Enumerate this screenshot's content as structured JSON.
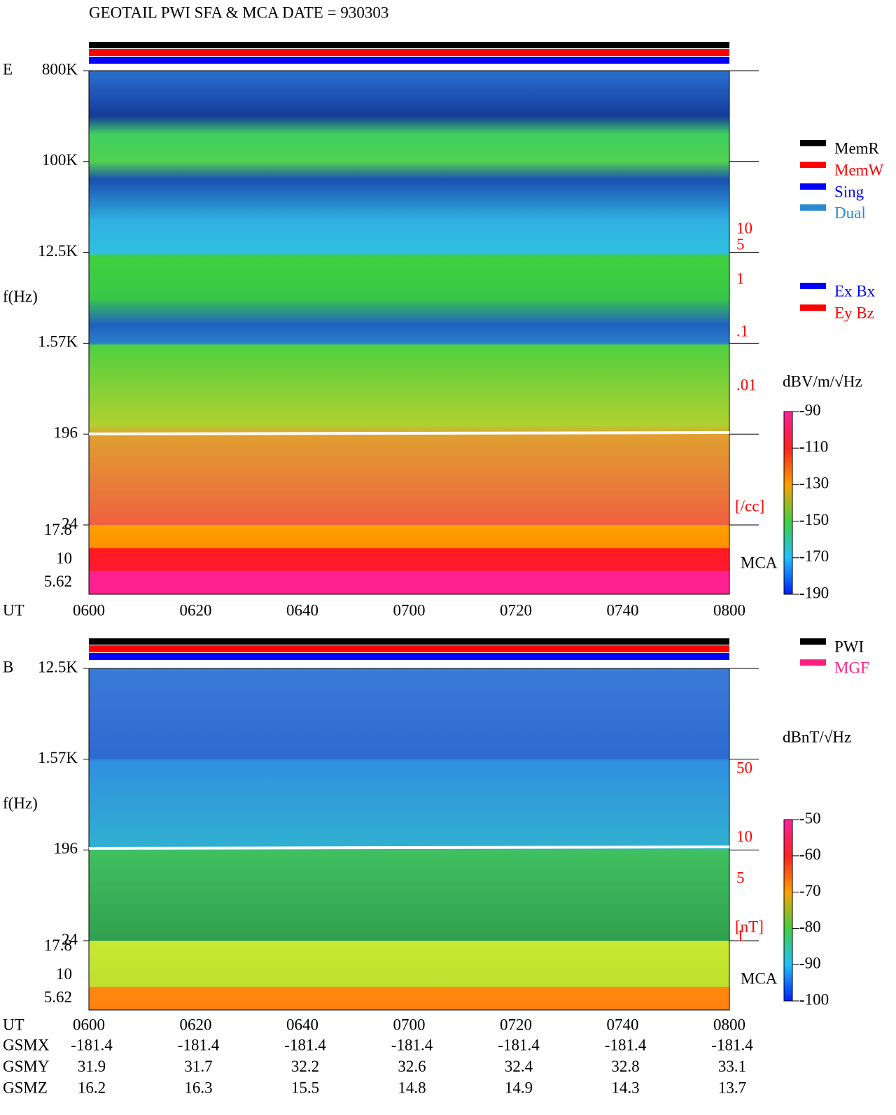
{
  "title": "GEOTAIL  PWI SFA & MCA   DATE = 930303",
  "time_label": "UT",
  "time_ticks": [
    "0600",
    "0620",
    "0640",
    "0700",
    "0720",
    "0740",
    "0800"
  ],
  "panels": [
    {
      "name": "E",
      "freq_label": "f(Hz)",
      "freq_ticks": [
        "800K",
        "100K",
        "12.5K",
        "1.57K",
        "196",
        "24"
      ],
      "mca_ticks": [
        "17.8",
        "10",
        "5.62"
      ],
      "mca_label": "MCA",
      "scale_ticks": [
        "10",
        "5",
        "1",
        ".1",
        ".01"
      ],
      "scale_unit": "[/cc]",
      "colorbar": {
        "unit": "dBV/m/√Hz",
        "range": [
          -190,
          -90
        ],
        "ticks": [
          -90,
          -110,
          -130,
          -150,
          -170,
          -190
        ]
      },
      "legends": [
        [
          {
            "label": "MemR",
            "color": "#000000"
          },
          {
            "label": "MemW",
            "color": "#ff0000"
          },
          {
            "label": "Sing",
            "color": "#0000ff"
          },
          {
            "label": "Dual",
            "color": "#2a8ad0"
          }
        ],
        [
          {
            "label": "Ex Bx",
            "color": "#0000ff"
          },
          {
            "label": "Ey Bz",
            "color": "#ff0000"
          }
        ]
      ]
    },
    {
      "name": "B",
      "freq_label": "f(Hz)",
      "freq_ticks": [
        "12.5K",
        "1.57K",
        "196",
        "24"
      ],
      "mca_ticks": [
        "17.8",
        "10",
        "5.62"
      ],
      "mca_label": "MCA",
      "scale_ticks": [
        "50",
        "10",
        "5",
        "1"
      ],
      "scale_unit": "[nT]",
      "colorbar": {
        "unit": "dBnT/√Hz",
        "range": [
          -100,
          -50
        ],
        "ticks": [
          -50,
          -60,
          -70,
          -80,
          -90,
          -100
        ]
      },
      "legends": [
        [
          {
            "label": "PWI",
            "color": "#000000"
          },
          {
            "label": "MGF",
            "color": "#ff2080"
          }
        ]
      ]
    }
  ],
  "orbit": [
    {
      "label": "GSMX",
      "values": [
        -181.4,
        -181.4,
        -181.4,
        -181.4,
        -181.4,
        -181.4,
        -181.4
      ]
    },
    {
      "label": "GSMY",
      "values": [
        31.9,
        31.7,
        32.2,
        32.6,
        32.4,
        32.8,
        33.1
      ]
    },
    {
      "label": "GSMZ",
      "values": [
        16.2,
        16.3,
        15.5,
        14.8,
        14.9,
        14.3,
        13.7
      ]
    }
  ]
}
